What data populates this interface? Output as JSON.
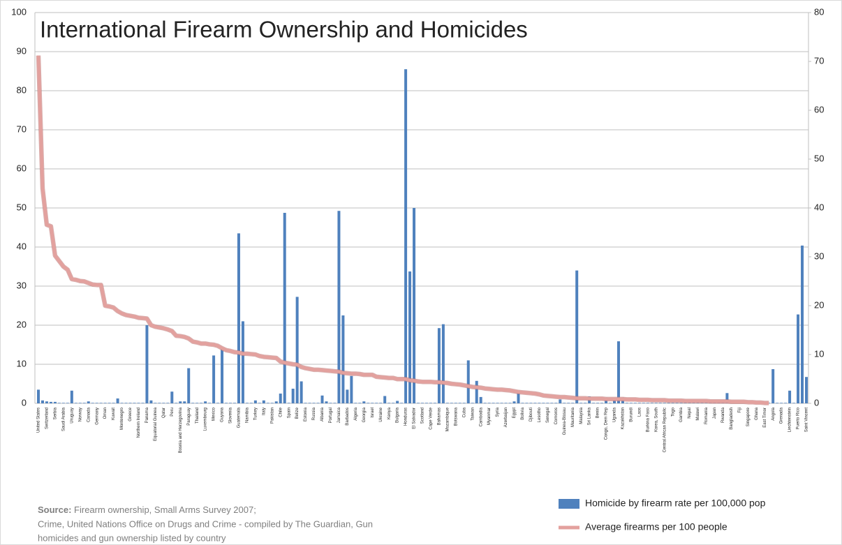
{
  "chart_data": {
    "type": "bar",
    "title": "International Firearm Ownership and Homicides",
    "source_label": "Source:",
    "source_lines": [
      "Firearm ownership, Small Arms Survey 2007;",
      "Crime, United Nations Office on Drugs and Crime - compiled by The Guardian, Gun",
      "homicides and gun ownership listed by country"
    ],
    "categories": [
      "United States",
      null,
      "Switzerland",
      null,
      "Serbia",
      null,
      "Saudi Arabia",
      null,
      "Uruguay",
      null,
      "Norway",
      null,
      "Canada",
      null,
      "Germany",
      null,
      "Oman",
      null,
      "Kuwait",
      null,
      "Montenegro",
      null,
      "Greece",
      null,
      "Northern Ireland",
      null,
      "Panama",
      null,
      "Equatorial Guinea",
      null,
      "Qatar",
      null,
      "Peru",
      null,
      "Bosnia and Herzegovina",
      null,
      "Paraguay",
      null,
      "Thailand",
      null,
      "Luxembourg",
      null,
      "Mexico",
      null,
      "Guyana",
      null,
      "Slovenia",
      null,
      "Guatemala",
      null,
      "Namibia",
      null,
      "Turkey",
      null,
      "Italy",
      null,
      "Pakistan",
      null,
      "Chile",
      null,
      "Spain",
      null,
      "Belize",
      null,
      "Estonia",
      null,
      "Russia",
      null,
      "Albania",
      null,
      "Portugal",
      null,
      "Jamaica",
      null,
      "Barbados",
      null,
      "Algeria",
      null,
      "Georgia",
      null,
      "Israel",
      null,
      "Ukraine",
      null,
      "Kenya",
      null,
      "Bulgaria",
      null,
      "Honduras",
      null,
      "El Salvador",
      null,
      "Scotland",
      null,
      "Cape Verde",
      null,
      "Bahamas",
      null,
      "Mozambique",
      null,
      "Botswana",
      null,
      "Cuba",
      null,
      "Taiwan",
      null,
      "Cambodia",
      null,
      "Myanmar",
      null,
      "Syria",
      null,
      "Azerbaijan",
      null,
      "Egypt",
      null,
      "Bolivia",
      null,
      "Djibouti",
      null,
      "Lesotho",
      null,
      "Senegal",
      null,
      "Comoros",
      null,
      "Guinea-Bissau",
      null,
      "Mauritania",
      null,
      "Malaysia",
      null,
      "Sri Lanka",
      null,
      "Benin",
      null,
      "Congo, Dem Rep",
      null,
      "Uganda",
      null,
      "Kazakhstan",
      null,
      "Burundi",
      null,
      "Laos",
      null,
      "Burkina Faso",
      null,
      "Korea, South",
      null,
      "Central African Republic",
      null,
      "Togo",
      null,
      "Gambia",
      null,
      "Nepal",
      null,
      "Malawi",
      null,
      "Romania",
      null,
      "Japan",
      null,
      "Rwanda",
      null,
      "Bangladesh",
      null,
      "Fiji",
      null,
      "Singapore",
      null,
      "Ghana",
      null,
      "East Timor",
      null,
      "Angola",
      null,
      "Grenada",
      null,
      "Liechtenstein",
      null,
      "Puerto Rico",
      null,
      "Saint Vincent"
    ],
    "series": [
      {
        "name": "Homicide by firearm rate per 100,000 pop",
        "type": "bar",
        "axis": "y2",
        "color": "#4f81bd",
        "values": [
          2.8,
          0.6,
          0.4,
          0.3,
          0.3,
          0.1,
          0.1,
          0.1,
          2.6,
          0.1,
          0.1,
          0.1,
          0.4,
          0.1,
          0.1,
          0.1,
          0.1,
          0.1,
          0.1,
          1.0,
          0.1,
          0.1,
          0.1,
          0.1,
          0.1,
          0.1,
          16.0,
          0.6,
          0.1,
          0.1,
          0.1,
          0.1,
          2.4,
          0.1,
          0.4,
          0.4,
          7.2,
          0.1,
          0.1,
          0.1,
          0.4,
          0.1,
          9.8,
          0.1,
          11.2,
          0.1,
          0.1,
          0.1,
          34.8,
          16.8,
          0.1,
          0.1,
          0.6,
          0.1,
          0.6,
          0.1,
          0.1,
          0.4,
          2.0,
          39.0,
          0.1,
          3.0,
          21.8,
          4.5,
          0.1,
          0.1,
          0.1,
          0.1,
          1.6,
          0.4,
          0.1,
          0.1,
          39.4,
          18.0,
          2.8,
          5.6,
          0.1,
          0.1,
          0.4,
          0.1,
          0.1,
          0.1,
          0.1,
          1.5,
          0.1,
          0.1,
          0.5,
          0.1,
          68.4,
          27.0,
          40.0,
          0.1,
          0.1,
          0.1,
          0.1,
          0.1,
          15.4,
          16.2,
          0.1,
          0.1,
          0.1,
          0.1,
          0.1,
          8.8,
          0.1,
          4.6,
          1.3,
          0.1,
          0.1,
          0.1,
          0.1,
          0.1,
          0.1,
          0.1,
          0.4,
          2.6,
          0.1,
          0.1,
          0.1,
          0.1,
          0.1,
          0.1,
          0.1,
          0.1,
          0.1,
          0.8,
          0.1,
          0.1,
          0.1,
          27.2,
          0.1,
          0.1,
          1.4,
          0.1,
          0.1,
          0.1,
          1.2,
          0.1,
          1.0,
          12.7,
          1.2,
          0.1,
          0.1,
          0.1,
          0.1,
          0.1,
          0.1,
          0.1,
          0.1,
          0.1,
          0.1,
          0.1,
          0.1,
          0.1,
          0.1,
          0.1,
          0.1,
          0.1,
          0.1,
          0.1,
          0.1,
          0.1,
          0.1,
          0.1,
          0.1,
          2.1,
          0.1,
          0.1,
          0.1,
          0.1,
          0.1,
          0.1,
          0.1,
          0.1,
          0.1,
          0.1,
          7.0,
          0.1,
          0.1,
          0.1,
          2.6,
          0.1,
          18.2,
          32.3,
          5.4
        ]
      },
      {
        "name": "Average firearms per 100 people",
        "type": "line",
        "axis": "y",
        "color": "#e3a19e",
        "values": [
          89,
          55,
          45.7,
          45.3,
          37.8,
          36.4,
          35,
          34.2,
          31.8,
          31.6,
          31.3,
          31.2,
          30.8,
          30.4,
          30.3,
          30.3,
          25,
          24.8,
          24.5,
          23.6,
          23,
          22.6,
          22.4,
          22.2,
          21.9,
          21.8,
          21.7,
          20,
          19.6,
          19.4,
          19.2,
          18.9,
          18.5,
          17.3,
          17.2,
          17,
          16.6,
          15.8,
          15.6,
          15.3,
          15.3,
          15.1,
          15,
          14.7,
          14.1,
          13.6,
          13.4,
          13.1,
          13,
          12.7,
          12.7,
          12.6,
          12.5,
          12.1,
          11.9,
          11.8,
          11.7,
          11.6,
          10.7,
          10.4,
          10.2,
          10,
          9.9,
          9.3,
          9,
          8.8,
          8.6,
          8.6,
          8.5,
          8.4,
          8.3,
          8.2,
          8.1,
          7.8,
          7.7,
          7.6,
          7.6,
          7.5,
          7.3,
          7.3,
          7.3,
          6.8,
          6.7,
          6.6,
          6.5,
          6.5,
          6.2,
          6.2,
          6.2,
          5.9,
          5.8,
          5.6,
          5.5,
          5.5,
          5.5,
          5.4,
          5.4,
          5.3,
          5.2,
          5,
          4.9,
          4.8,
          4.6,
          4.4,
          4.2,
          4.1,
          4,
          3.8,
          3.7,
          3.6,
          3.5,
          3.5,
          3.4,
          3.3,
          3.1,
          2.9,
          2.8,
          2.7,
          2.6,
          2.5,
          2.3,
          2.0,
          1.9,
          1.8,
          1.7,
          1.6,
          1.6,
          1.5,
          1.4,
          1.3,
          1.3,
          1.3,
          1.2,
          1.2,
          1.2,
          1.2,
          1.1,
          1.1,
          1.1,
          1.1,
          1.1,
          1,
          1,
          1,
          0.9,
          0.9,
          0.9,
          0.8,
          0.8,
          0.8,
          0.8,
          0.7,
          0.7,
          0.7,
          0.7,
          0.6,
          0.6,
          0.6,
          0.6,
          0.6,
          0.6,
          0.5,
          0.5,
          0.5,
          0.5,
          0.5,
          0.4,
          0.4,
          0.4,
          0.4,
          0.3,
          0.3,
          0.2,
          0.2,
          0.1,
          0.1,
          null,
          null,
          null,
          null,
          null,
          null,
          null,
          null,
          null
        ]
      }
    ],
    "ylim": [
      0,
      100
    ],
    "yticks": [
      0,
      10,
      20,
      30,
      40,
      50,
      60,
      70,
      80,
      90,
      100
    ],
    "y2lim": [
      0,
      80
    ],
    "y2ticks": [
      0,
      10,
      20,
      30,
      40,
      50,
      60,
      70,
      80
    ],
    "grid": true,
    "legend": "bottom-right"
  }
}
